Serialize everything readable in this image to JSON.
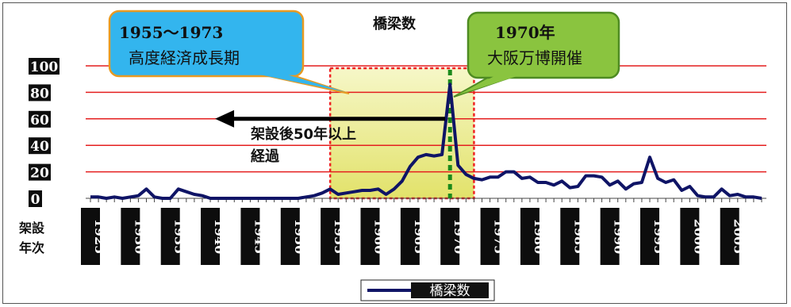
{
  "chart_data": {
    "type": "line",
    "title": "橋梁数",
    "ylim": [
      0,
      100
    ],
    "yticks": [
      "0",
      "20",
      "40",
      "60",
      "80",
      "100"
    ],
    "x_start": 1925,
    "x_end": 2009,
    "xtick_labels": [
      "1925",
      "1930",
      "1935",
      "1940",
      "1945",
      "1950",
      "1955",
      "1960",
      "1965",
      "1970",
      "1975",
      "1980",
      "1985",
      "1990",
      "1995",
      "2000",
      "2005"
    ],
    "xaxis_label_line1": "架設",
    "xaxis_label_line2": "年次",
    "grid": true,
    "legend_position": "bottom",
    "series": [
      {
        "name": "橋梁数",
        "color": "#0f1466",
        "x": [
          1925,
          1926,
          1927,
          1928,
          1929,
          1930,
          1931,
          1932,
          1933,
          1934,
          1935,
          1936,
          1937,
          1938,
          1939,
          1940,
          1941,
          1942,
          1943,
          1944,
          1945,
          1946,
          1947,
          1948,
          1949,
          1950,
          1951,
          1952,
          1953,
          1954,
          1955,
          1956,
          1957,
          1958,
          1959,
          1960,
          1961,
          1962,
          1963,
          1964,
          1965,
          1966,
          1967,
          1968,
          1969,
          1970,
          1971,
          1972,
          1973,
          1974,
          1975,
          1976,
          1977,
          1978,
          1979,
          1980,
          1981,
          1982,
          1983,
          1984,
          1985,
          1986,
          1987,
          1988,
          1989,
          1990,
          1991,
          1992,
          1993,
          1994,
          1995,
          1996,
          1997,
          1998,
          1999,
          2000,
          2001,
          2002,
          2003,
          2004,
          2005,
          2006,
          2007,
          2008,
          2009
        ],
        "values": [
          1,
          1,
          0,
          1,
          0,
          1,
          2,
          7,
          1,
          0,
          0,
          7,
          5,
          3,
          2,
          0,
          0,
          0,
          0,
          0,
          0,
          0,
          0,
          0,
          0,
          0,
          0,
          1,
          2,
          4,
          7,
          3,
          4,
          5,
          6,
          6,
          7,
          3,
          7,
          13,
          24,
          31,
          33,
          32,
          33,
          86,
          25,
          18,
          15,
          14,
          16,
          16,
          20,
          20,
          15,
          16,
          12,
          12,
          10,
          13,
          8,
          9,
          17,
          17,
          16,
          10,
          13,
          7,
          11,
          12,
          31,
          15,
          12,
          14,
          6,
          9,
          2,
          1,
          1,
          7,
          2,
          3,
          1,
          1,
          0
        ]
      }
    ],
    "annotations": [
      {
        "id": "period",
        "lines": [
          "1955～1973",
          "高度経済成長期"
        ],
        "color": "#33b5ee",
        "border": "#e89a22"
      },
      {
        "id": "expo",
        "lines": [
          "1970年",
          "大阪万博開催"
        ],
        "color": "#8ac43f",
        "border": "#4e8b22"
      },
      {
        "id": "arrow",
        "lines": [
          "架設後50年以上",
          "経過"
        ]
      }
    ],
    "highlight_range": [
      1955,
      1973
    ],
    "event_year": 1970,
    "arrow_from_year": 1970,
    "arrow_to_year": 1940,
    "arrow_level": 60
  }
}
